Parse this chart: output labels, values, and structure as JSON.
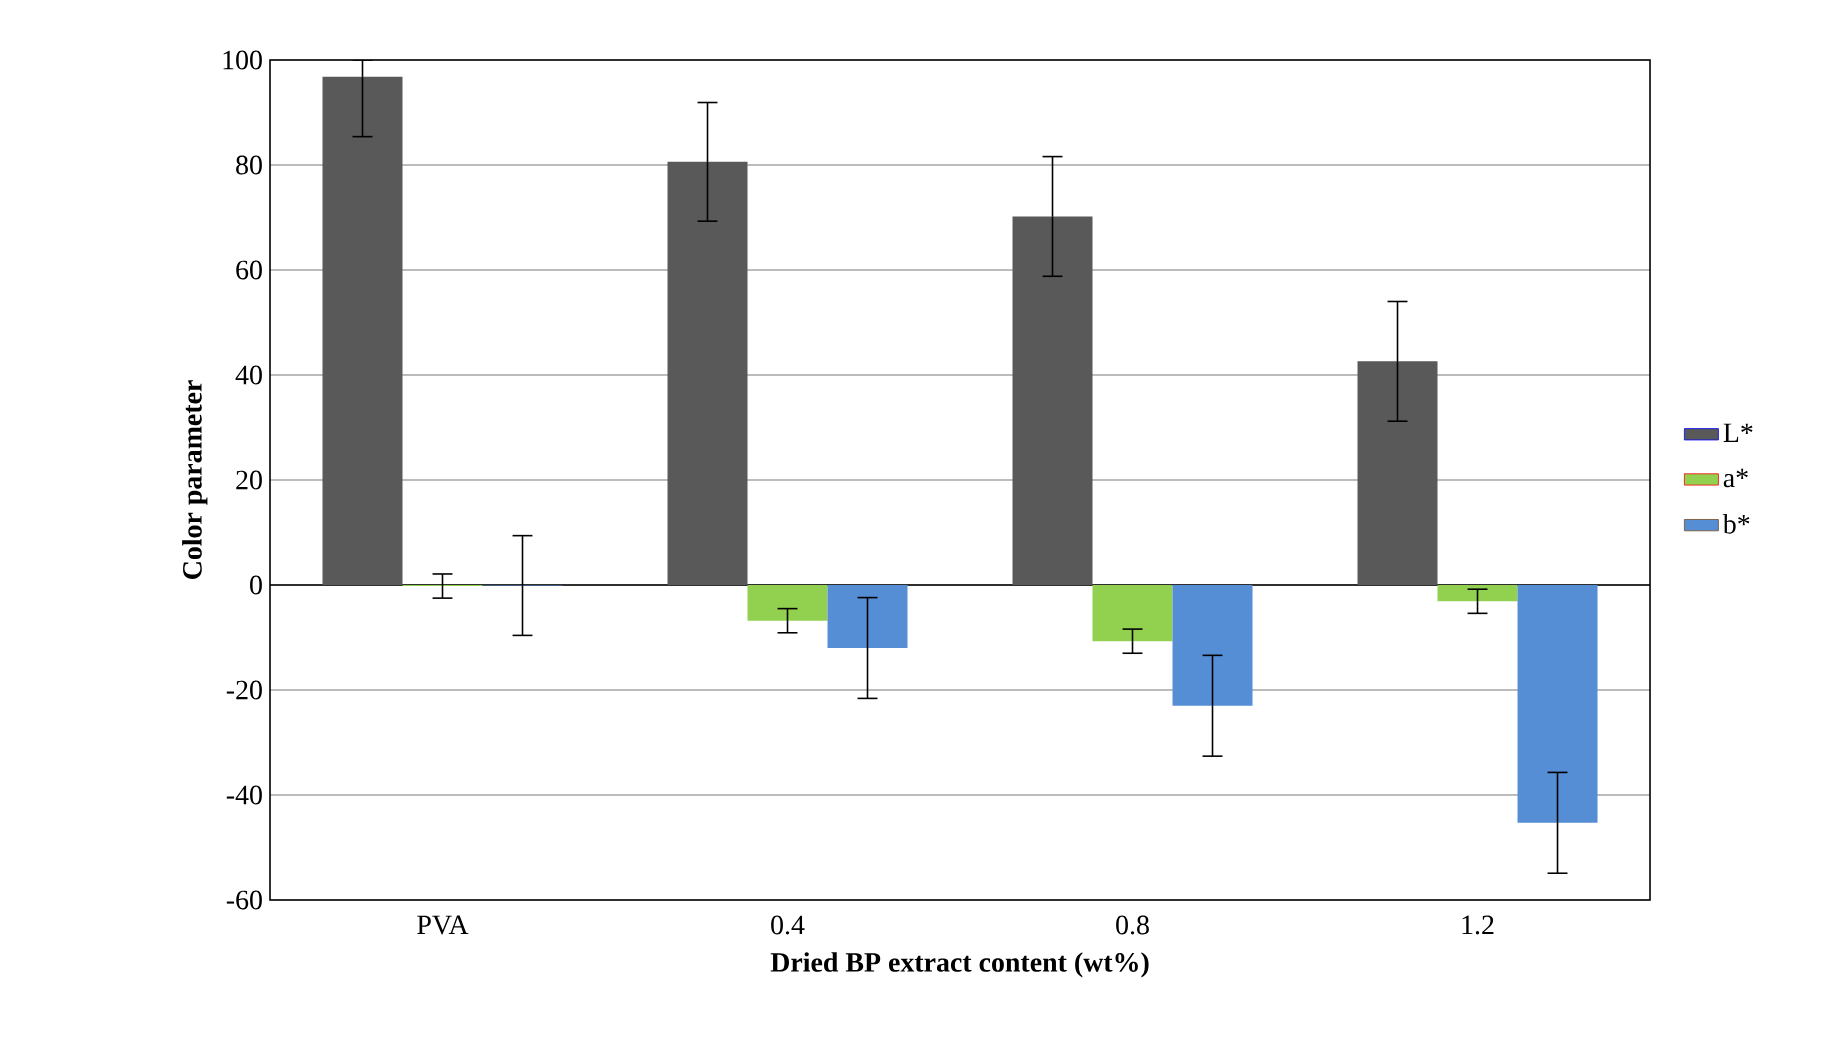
{
  "chart_data": {
    "type": "bar",
    "xlabel": "Dried BP extract content (wt%)",
    "ylabel": "Color parameter",
    "categories": [
      "PVA",
      "0.4",
      "0.8",
      "1.2"
    ],
    "series": [
      {
        "name": "L*",
        "color": "#595959",
        "values": [
          96.8,
          80.6,
          70.2,
          42.6
        ],
        "errors": [
          [
            85.4,
            100
          ],
          11.3,
          11.4,
          11.4
        ]
      },
      {
        "name": "a*",
        "color": "#92d050",
        "values": [
          -0.2,
          -6.8,
          -10.7,
          -3.1
        ],
        "errors": [
          2.3,
          2.3,
          2.3,
          2.3
        ]
      },
      {
        "name": "b*",
        "color": "#558ed5",
        "values": [
          -0.1,
          -12.0,
          -23.0,
          -45.3
        ],
        "errors": [
          9.5,
          9.6,
          9.6,
          9.6
        ]
      }
    ],
    "ylim": [
      -60,
      100
    ],
    "yticks": [
      -60,
      -40,
      -20,
      0,
      20,
      40,
      60,
      80,
      100
    ],
    "grid": "y",
    "legend": "right"
  }
}
